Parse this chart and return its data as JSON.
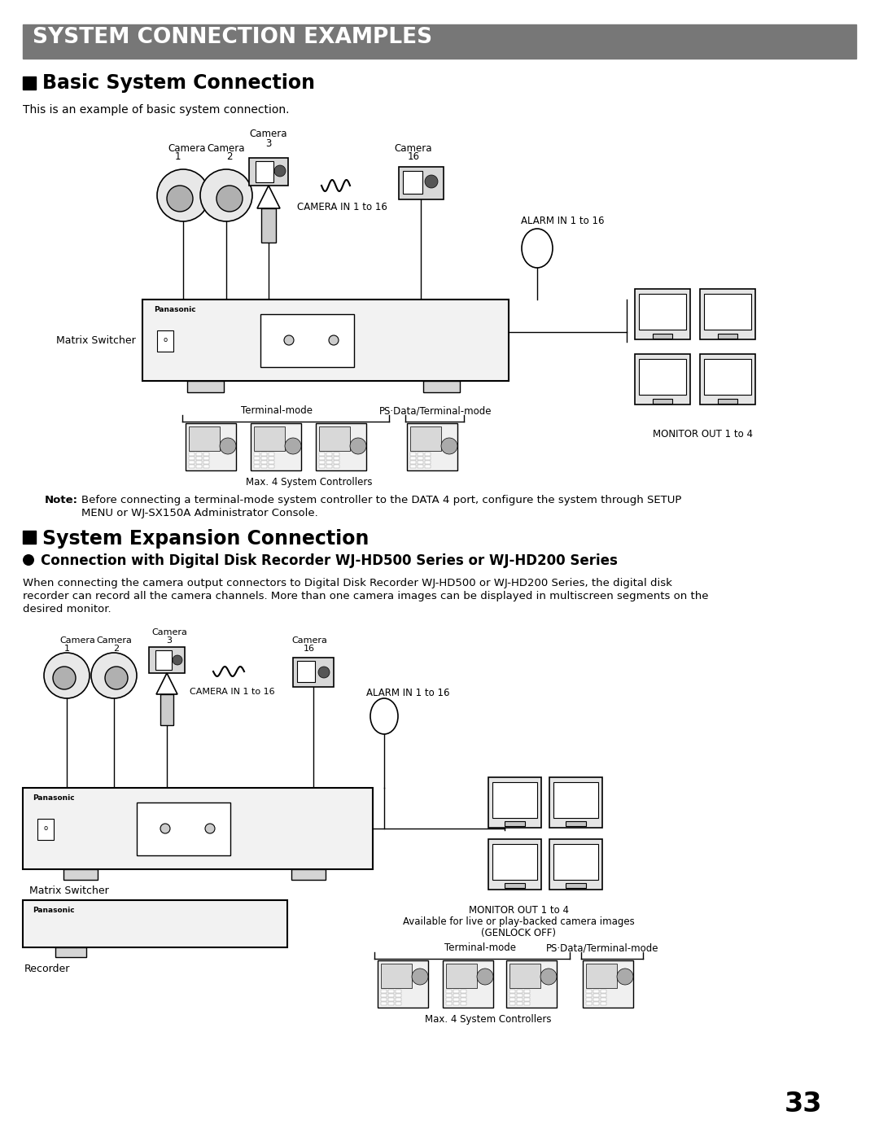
{
  "page_bg": "#ffffff",
  "header_bg": "#777777",
  "header_text": "SYSTEM CONNECTION EXAMPLES",
  "header_text_color": "#ffffff",
  "section1_body": "This is an example of basic system connection.",
  "note_line1": "Before connecting a terminal-mode system controller to the DATA 4 port, configure the system through SETUP",
  "note_line2": "MENU or WJ-SX150A Administrator Console.",
  "section2_body_line1": "When connecting the camera output connectors to Digital Disk Recorder WJ-HD500 or WJ-HD200 Series, the digital disk",
  "section2_body_line2": "recorder can record all the camera channels. More than one camera images can be displayed in multiscreen segments on the",
  "section2_body_line3": "desired monitor.",
  "page_number": "33"
}
